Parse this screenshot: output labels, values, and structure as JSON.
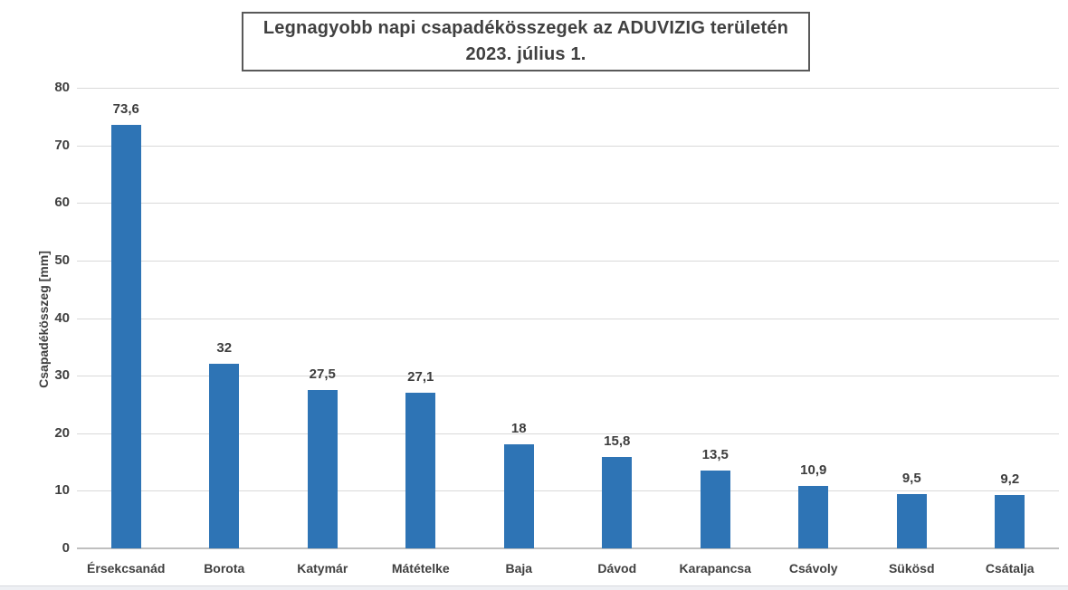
{
  "chart_data": {
    "type": "bar",
    "title": "Legnagyobb napi csapadékösszegek az ADUVIZIG területén",
    "subtitle": "2023. július 1.",
    "ylabel": "Csapadékösszeg [mm]",
    "xlabel": "",
    "categories": [
      "Érsekcsanád",
      "Borota",
      "Katymár",
      "Mátételke",
      "Baja",
      "Dávod",
      "Karapancsa",
      "Csávoly",
      "Sükösd",
      "Csátalja"
    ],
    "values": [
      73.6,
      32,
      27.5,
      27.1,
      18,
      15.8,
      13.5,
      10.9,
      9.5,
      9.2
    ],
    "value_labels": [
      "73,6",
      "32",
      "27,5",
      "27,1",
      "18",
      "15,8",
      "13,5",
      "10,9",
      "9,5",
      "9,2"
    ],
    "ylim": [
      0,
      80
    ],
    "yticks": [
      0,
      10,
      20,
      30,
      40,
      50,
      60,
      70,
      80
    ],
    "grid": true,
    "legend": false,
    "colors": {
      "bar": "#2E74B5",
      "text": "#404040",
      "gridline": "#D9D9D9",
      "axis_line": "#BFBFBF",
      "title_border": "#595959",
      "background": "#FFFFFF"
    }
  }
}
